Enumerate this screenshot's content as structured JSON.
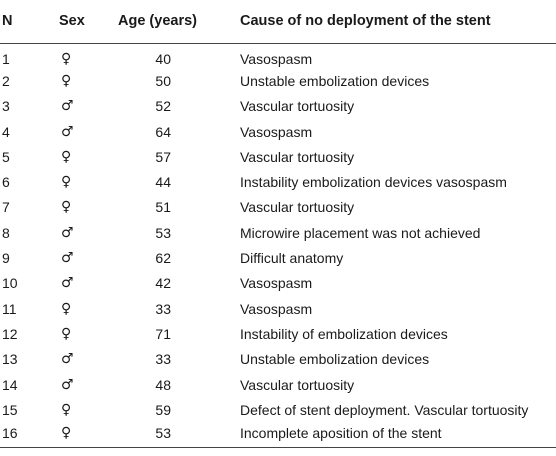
{
  "table": {
    "headers": {
      "n": "N",
      "sex": "Sex",
      "age": "Age (years)",
      "cause": "Cause of no deployment of the stent"
    },
    "rows": [
      {
        "n": "1",
        "sex": "♀",
        "age": "40",
        "cause": "Vasospasm"
      },
      {
        "n": "2",
        "sex": "♀",
        "age": "50",
        "cause": "Unstable embolization devices"
      },
      {
        "n": "3",
        "sex": "♂",
        "age": "52",
        "cause": "Vascular tortuosity"
      },
      {
        "n": "4",
        "sex": "♂",
        "age": "64",
        "cause": "Vasospasm"
      },
      {
        "n": "5",
        "sex": "♀",
        "age": "57",
        "cause": "Vascular tortuosity"
      },
      {
        "n": "6",
        "sex": "♀",
        "age": "44",
        "cause": "Instability embolization devices vasospasm"
      },
      {
        "n": "7",
        "sex": "♀",
        "age": "51",
        "cause": "Vascular tortuosity"
      },
      {
        "n": "8",
        "sex": "♂",
        "age": "53",
        "cause": "Microwire placement was not achieved"
      },
      {
        "n": "9",
        "sex": "♂",
        "age": "62",
        "cause": "Difficult anatomy"
      },
      {
        "n": "10",
        "sex": "♂",
        "age": "42",
        "cause": "Vasospasm"
      },
      {
        "n": "11",
        "sex": "♀",
        "age": "33",
        "cause": "Vasospasm"
      },
      {
        "n": "12",
        "sex": "♀",
        "age": "71",
        "cause": "Instability of embolization devices"
      },
      {
        "n": "13",
        "sex": "♂",
        "age": "33",
        "cause": "Unstable embolization devices"
      },
      {
        "n": "14",
        "sex": "♂",
        "age": "48",
        "cause": "Vascular tortuosity"
      },
      {
        "n": "15",
        "sex": "♀",
        "age": "59",
        "cause": "Defect of stent deployment. Vascular tortuosity"
      },
      {
        "n": "16",
        "sex": "♀",
        "age": "53",
        "cause": "Incomplete aposition of the stent"
      }
    ]
  }
}
